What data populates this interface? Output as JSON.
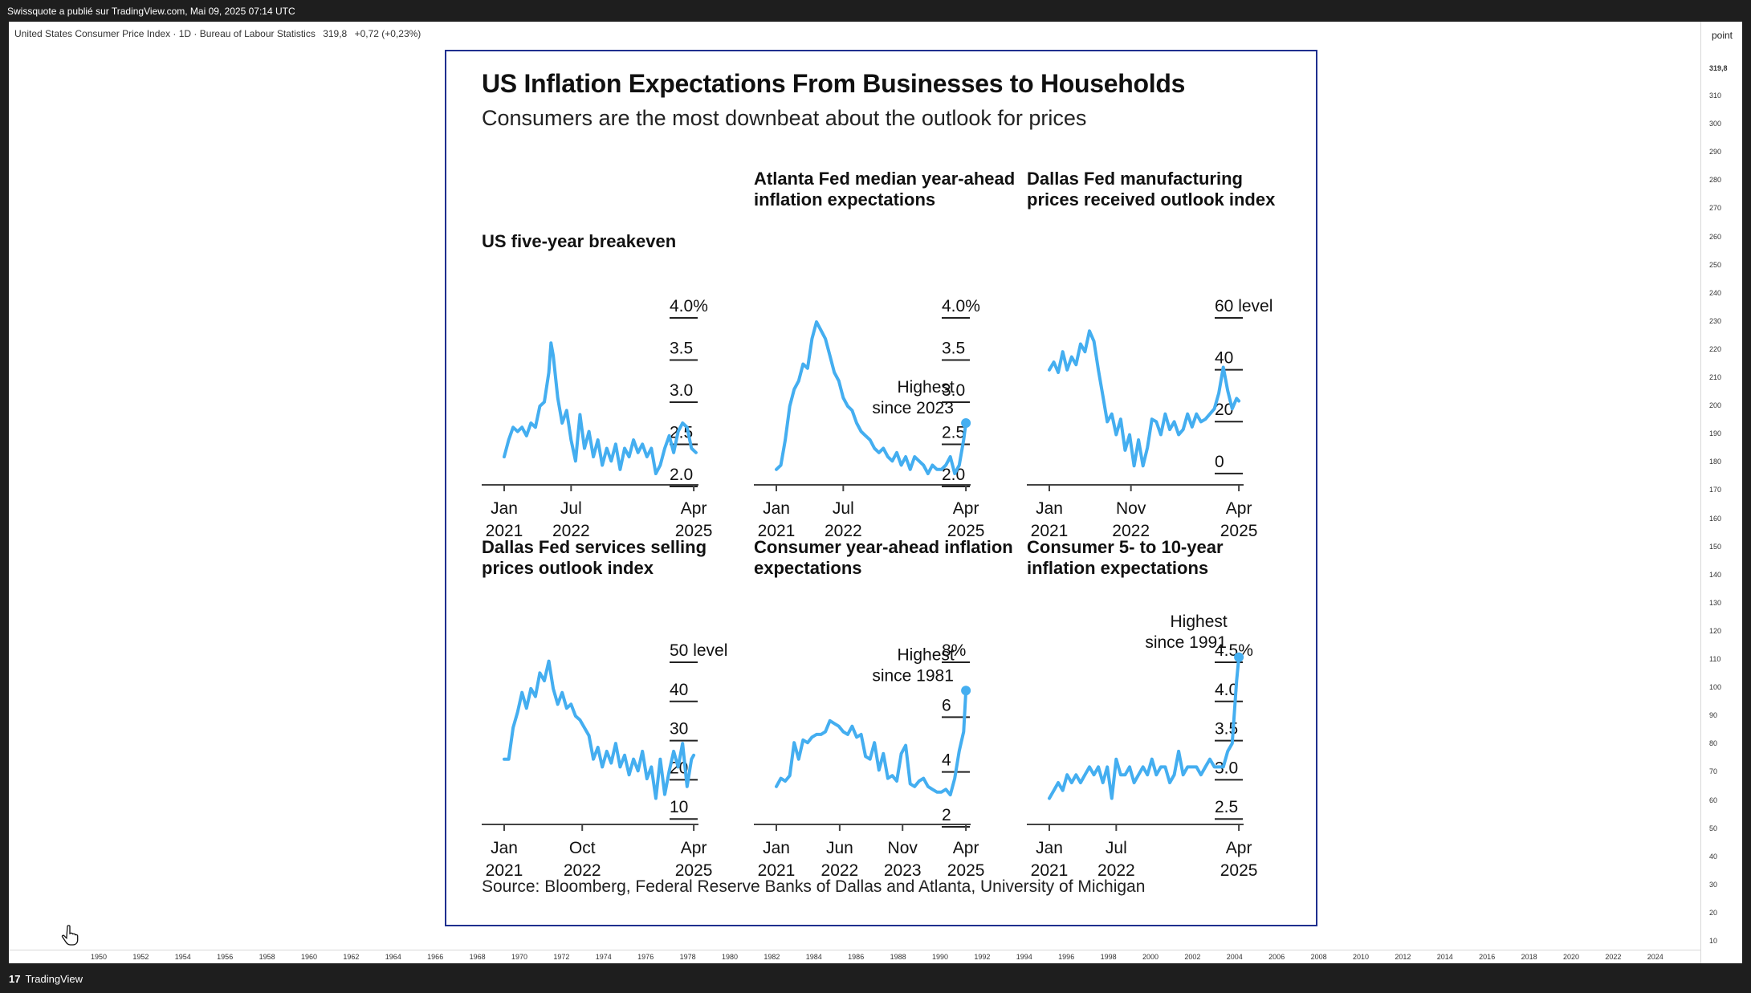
{
  "topbar": {
    "text": "Swissquote a publié sur TradingView.com, Mai 09, 2025 07:14 UTC"
  },
  "instrument": {
    "name": "United States Consumer Price Index · 1D · Bureau of Labour Statistics",
    "last": "319,8",
    "change": "+0,72 (+0,23%)"
  },
  "price_axis": {
    "unit": "point",
    "current": "319,8",
    "labels": [
      "310",
      "300",
      "290",
      "280",
      "270",
      "260",
      "250",
      "240",
      "230",
      "220",
      "210",
      "200",
      "190",
      "180",
      "170",
      "160",
      "150",
      "140",
      "130",
      "120",
      "110",
      "100",
      "90",
      "80",
      "70",
      "60",
      "50",
      "40",
      "30",
      "20",
      "10"
    ]
  },
  "time_axis": {
    "labels": [
      "1950",
      "1952",
      "1954",
      "1956",
      "1958",
      "1960",
      "1962",
      "1964",
      "1966",
      "1968",
      "1970",
      "1972",
      "1974",
      "1976",
      "1978",
      "1980",
      "1982",
      "1984",
      "1986",
      "1988",
      "1990",
      "1992",
      "1994",
      "1996",
      "1998",
      "2000",
      "2002",
      "2004",
      "2006",
      "2008",
      "2010",
      "2012",
      "2014",
      "2016",
      "2018",
      "2020",
      "2022",
      "2024"
    ]
  },
  "footer": {
    "brand_mark": "17",
    "brand": "TradingView"
  },
  "embed": {
    "title": "US Inflation Expectations From Businesses to Households",
    "subtitle": "Consumers are the most downbeat about the outlook for prices",
    "source": "Source: Bloomberg, Federal Reserve Banks of Dallas and Atlanta, University of Michigan"
  },
  "colors": {
    "line": "#44aef0",
    "frame": "#1f2f8f",
    "bg_dark": "#1e1e1e"
  },
  "chart_data": [
    {
      "type": "line",
      "title": "US five-year breakeven",
      "ylim": [
        2.0,
        4.0
      ],
      "yticks": [
        {
          "v": 4.0,
          "label": "4.0%"
        },
        {
          "v": 3.5,
          "label": "3.5"
        },
        {
          "v": 3.0,
          "label": "3.0"
        },
        {
          "v": 2.5,
          "label": "2.5"
        },
        {
          "v": 2.0,
          "label": "2.0"
        }
      ],
      "xlim": [
        2021.0,
        2025.5
      ],
      "xticks": [
        {
          "v": 2021.0,
          "line1": "Jan",
          "line2": "2021"
        },
        {
          "v": 2022.5,
          "line1": "Jul",
          "line2": "2022"
        },
        {
          "v": 2025.25,
          "line1": "Apr",
          "line2": "2025"
        }
      ],
      "annotation": null,
      "x": [
        2021.0,
        2021.1,
        2021.2,
        2021.3,
        2021.4,
        2021.5,
        2021.6,
        2021.7,
        2021.8,
        2021.9,
        2022.0,
        2022.05,
        2022.1,
        2022.2,
        2022.3,
        2022.4,
        2022.5,
        2022.6,
        2022.7,
        2022.8,
        2022.9,
        2023.0,
        2023.1,
        2023.2,
        2023.3,
        2023.4,
        2023.5,
        2023.6,
        2023.7,
        2023.8,
        2023.9,
        2024.0,
        2024.1,
        2024.2,
        2024.3,
        2024.4,
        2024.5,
        2024.6,
        2024.7,
        2024.8,
        2024.9,
        2025.0,
        2025.1,
        2025.2,
        2025.3
      ],
      "values": [
        2.2,
        2.4,
        2.55,
        2.5,
        2.55,
        2.45,
        2.6,
        2.55,
        2.8,
        2.85,
        3.2,
        3.55,
        3.4,
        2.9,
        2.6,
        2.75,
        2.4,
        2.15,
        2.7,
        2.3,
        2.5,
        2.2,
        2.4,
        2.1,
        2.3,
        2.15,
        2.35,
        2.05,
        2.3,
        2.2,
        2.4,
        2.25,
        2.35,
        2.2,
        2.3,
        2.0,
        2.1,
        2.3,
        2.45,
        2.25,
        2.5,
        2.6,
        2.55,
        2.3,
        2.25
      ]
    },
    {
      "type": "line",
      "title": "Atlanta Fed median year-ahead inflation expectations",
      "ylim": [
        2.0,
        4.0
      ],
      "yticks": [
        {
          "v": 4.0,
          "label": "4.0%"
        },
        {
          "v": 3.5,
          "label": "3.5"
        },
        {
          "v": 3.0,
          "label": "3.0"
        },
        {
          "v": 2.5,
          "label": "2.5"
        },
        {
          "v": 2.0,
          "label": "2.0"
        }
      ],
      "xlim": [
        2021.0,
        2025.5
      ],
      "xticks": [
        {
          "v": 2021.0,
          "line1": "Jan",
          "line2": "2021"
        },
        {
          "v": 2022.5,
          "line1": "Jul",
          "line2": "2022"
        },
        {
          "v": 2025.25,
          "line1": "Apr",
          "line2": "2025"
        }
      ],
      "annotation": {
        "line1": "Highest",
        "line2": "since 2023",
        "x": 2025.25,
        "y": 2.6
      },
      "x": [
        2021.0,
        2021.1,
        2021.2,
        2021.3,
        2021.4,
        2021.5,
        2021.6,
        2021.7,
        2021.8,
        2021.9,
        2022.0,
        2022.1,
        2022.2,
        2022.3,
        2022.4,
        2022.5,
        2022.6,
        2022.7,
        2022.8,
        2022.9,
        2023.0,
        2023.1,
        2023.2,
        2023.3,
        2023.4,
        2023.5,
        2023.6,
        2023.7,
        2023.8,
        2023.9,
        2024.0,
        2024.1,
        2024.2,
        2024.3,
        2024.4,
        2024.5,
        2024.6,
        2024.7,
        2024.8,
        2024.9,
        2025.0,
        2025.1,
        2025.2,
        2025.25
      ],
      "values": [
        2.05,
        2.1,
        2.4,
        2.8,
        3.0,
        3.1,
        3.3,
        3.25,
        3.6,
        3.8,
        3.7,
        3.6,
        3.4,
        3.2,
        3.1,
        2.9,
        2.8,
        2.75,
        2.6,
        2.5,
        2.45,
        2.4,
        2.3,
        2.25,
        2.3,
        2.2,
        2.15,
        2.25,
        2.1,
        2.2,
        2.05,
        2.2,
        2.15,
        2.1,
        2.0,
        2.1,
        2.05,
        2.05,
        2.1,
        2.2,
        2.0,
        2.1,
        2.4,
        2.6
      ]
    },
    {
      "type": "line",
      "title": "Dallas Fed manufacturing prices received outlook index",
      "ylim": [
        -5,
        60
      ],
      "yticks": [
        {
          "v": 60,
          "label": "60 level"
        },
        {
          "v": 40,
          "label": "40"
        },
        {
          "v": 20,
          "label": "20"
        },
        {
          "v": 0,
          "label": "0"
        }
      ],
      "xlim": [
        2021.0,
        2025.5
      ],
      "xticks": [
        {
          "v": 2021.0,
          "line1": "Jan",
          "line2": "2021"
        },
        {
          "v": 2022.83,
          "line1": "Nov",
          "line2": "2022"
        },
        {
          "v": 2025.25,
          "line1": "Apr",
          "line2": "2025"
        }
      ],
      "annotation": null,
      "x": [
        2021.0,
        2021.1,
        2021.2,
        2021.3,
        2021.4,
        2021.5,
        2021.6,
        2021.7,
        2021.8,
        2021.9,
        2022.0,
        2022.1,
        2022.2,
        2022.3,
        2022.4,
        2022.5,
        2022.6,
        2022.7,
        2022.8,
        2022.9,
        2023.0,
        2023.1,
        2023.2,
        2023.3,
        2023.4,
        2023.5,
        2023.6,
        2023.7,
        2023.8,
        2023.9,
        2024.0,
        2024.1,
        2024.2,
        2024.3,
        2024.4,
        2024.5,
        2024.6,
        2024.7,
        2024.8,
        2024.9,
        2025.0,
        2025.1,
        2025.2,
        2025.25
      ],
      "values": [
        35,
        38,
        34,
        42,
        35,
        40,
        37,
        45,
        42,
        50,
        46,
        35,
        25,
        15,
        18,
        10,
        16,
        4,
        10,
        -2,
        8,
        -2,
        5,
        16,
        15,
        10,
        18,
        12,
        15,
        10,
        12,
        18,
        13,
        18,
        15,
        16,
        18,
        20,
        26,
        36,
        27,
        20,
        24,
        23
      ]
    },
    {
      "type": "line",
      "title": "Dallas Fed services selling prices outlook index",
      "ylim": [
        8,
        50
      ],
      "yticks": [
        {
          "v": 50,
          "label": "50 level"
        },
        {
          "v": 40,
          "label": "40"
        },
        {
          "v": 30,
          "label": "30"
        },
        {
          "v": 20,
          "label": "20"
        },
        {
          "v": 10,
          "label": "10"
        }
      ],
      "xlim": [
        2021.0,
        2025.5
      ],
      "xticks": [
        {
          "v": 2021.0,
          "line1": "Jan",
          "line2": "2021"
        },
        {
          "v": 2022.75,
          "line1": "Oct",
          "line2": "2022"
        },
        {
          "v": 2025.25,
          "line1": "Apr",
          "line2": "2025"
        }
      ],
      "annotation": null,
      "x": [
        2021.0,
        2021.1,
        2021.2,
        2021.3,
        2021.4,
        2021.5,
        2021.6,
        2021.7,
        2021.8,
        2021.9,
        2022.0,
        2022.1,
        2022.2,
        2022.3,
        2022.4,
        2022.5,
        2022.6,
        2022.7,
        2022.8,
        2022.9,
        2023.0,
        2023.1,
        2023.2,
        2023.3,
        2023.4,
        2023.5,
        2023.6,
        2023.7,
        2023.8,
        2023.9,
        2024.0,
        2024.1,
        2024.2,
        2024.3,
        2024.4,
        2024.5,
        2024.6,
        2024.7,
        2024.8,
        2024.9,
        2025.0,
        2025.1,
        2025.2,
        2025.25
      ],
      "values": [
        22,
        22,
        30,
        34,
        39,
        35,
        40,
        38,
        44,
        42,
        47,
        40,
        36,
        39,
        35,
        36,
        33,
        32,
        30,
        28,
        22,
        25,
        20,
        24,
        21,
        26,
        20,
        23,
        18,
        22,
        19,
        24,
        17,
        20,
        12,
        22,
        13,
        19,
        24,
        20,
        26,
        15,
        22,
        23
      ]
    },
    {
      "type": "line",
      "title": "Consumer year-ahead inflation expectations",
      "ylim": [
        2,
        8
      ],
      "yticks": [
        {
          "v": 8,
          "label": "8%"
        },
        {
          "v": 6,
          "label": "6"
        },
        {
          "v": 4,
          "label": "4"
        },
        {
          "v": 2,
          "label": "2"
        }
      ],
      "xlim": [
        2021.0,
        2025.5
      ],
      "xticks": [
        {
          "v": 2021.0,
          "line1": "Jan",
          "line2": "2021"
        },
        {
          "v": 2022.42,
          "line1": "Jun",
          "line2": "2022"
        },
        {
          "v": 2023.83,
          "line1": "Nov",
          "line2": "2023"
        },
        {
          "v": 2025.25,
          "line1": "Apr",
          "line2": "2025"
        }
      ],
      "annotation": {
        "line1": "Highest",
        "line2": "since 1981",
        "x": 2025.25,
        "y": 6.5
      },
      "x": [
        2021.0,
        2021.1,
        2021.2,
        2021.3,
        2021.4,
        2021.5,
        2021.6,
        2021.7,
        2021.8,
        2021.9,
        2022.0,
        2022.1,
        2022.2,
        2022.3,
        2022.4,
        2022.5,
        2022.6,
        2022.7,
        2022.8,
        2022.9,
        2023.0,
        2023.1,
        2023.2,
        2023.3,
        2023.4,
        2023.5,
        2023.6,
        2023.7,
        2023.8,
        2023.9,
        2024.0,
        2024.1,
        2024.2,
        2024.3,
        2024.4,
        2024.5,
        2024.6,
        2024.7,
        2024.8,
        2024.9,
        2025.0,
        2025.1,
        2025.2,
        2025.25
      ],
      "values": [
        3.0,
        3.3,
        3.2,
        3.4,
        4.6,
        4.0,
        4.7,
        4.6,
        4.8,
        4.9,
        4.9,
        5.0,
        5.4,
        5.3,
        5.2,
        5.0,
        4.9,
        5.2,
        4.8,
        4.9,
        4.1,
        4.0,
        4.6,
        3.6,
        4.2,
        3.3,
        3.4,
        3.2,
        4.2,
        4.5,
        3.1,
        3.0,
        3.2,
        3.3,
        3.0,
        2.9,
        2.8,
        2.8,
        2.9,
        2.7,
        3.3,
        4.3,
        5.0,
        6.5
      ]
    },
    {
      "type": "line",
      "title": "Consumer 5- to 10-year inflation expectations",
      "ylim": [
        2.4,
        4.5
      ],
      "yticks": [
        {
          "v": 4.5,
          "label": "4.5%"
        },
        {
          "v": 4.0,
          "label": "4.0"
        },
        {
          "v": 3.5,
          "label": "3.5"
        },
        {
          "v": 3.0,
          "label": "3.0"
        },
        {
          "v": 2.5,
          "label": "2.5"
        }
      ],
      "xlim": [
        2021.0,
        2025.5
      ],
      "xticks": [
        {
          "v": 2021.0,
          "line1": "Jan",
          "line2": "2021"
        },
        {
          "v": 2022.5,
          "line1": "Jul",
          "line2": "2022"
        },
        {
          "v": 2025.25,
          "line1": "Apr",
          "line2": "2025"
        }
      ],
      "annotation": {
        "line1": "Highest",
        "line2": "since 1991",
        "x": 2025.25,
        "y": 4.4
      },
      "x": [
        2021.0,
        2021.1,
        2021.2,
        2021.3,
        2021.4,
        2021.5,
        2021.6,
        2021.7,
        2021.8,
        2021.9,
        2022.0,
        2022.1,
        2022.2,
        2022.3,
        2022.4,
        2022.5,
        2022.6,
        2022.7,
        2022.8,
        2022.9,
        2023.0,
        2023.1,
        2023.2,
        2023.3,
        2023.4,
        2023.5,
        2023.6,
        2023.7,
        2023.8,
        2023.9,
        2024.0,
        2024.1,
        2024.2,
        2024.3,
        2024.4,
        2024.5,
        2024.6,
        2024.7,
        2024.8,
        2024.9,
        2025.0,
        2025.1,
        2025.2,
        2025.25
      ],
      "values": [
        2.6,
        2.7,
        2.8,
        2.7,
        2.9,
        2.8,
        2.9,
        2.8,
        2.9,
        3.0,
        2.9,
        3.0,
        2.8,
        3.0,
        2.6,
        3.1,
        2.9,
        2.9,
        3.0,
        2.8,
        2.9,
        3.0,
        2.9,
        3.1,
        2.9,
        3.0,
        3.0,
        2.8,
        2.9,
        3.2,
        2.9,
        3.0,
        3.0,
        3.0,
        2.9,
        3.0,
        3.1,
        3.0,
        3.0,
        3.0,
        3.2,
        3.3,
        4.1,
        4.4
      ]
    }
  ]
}
